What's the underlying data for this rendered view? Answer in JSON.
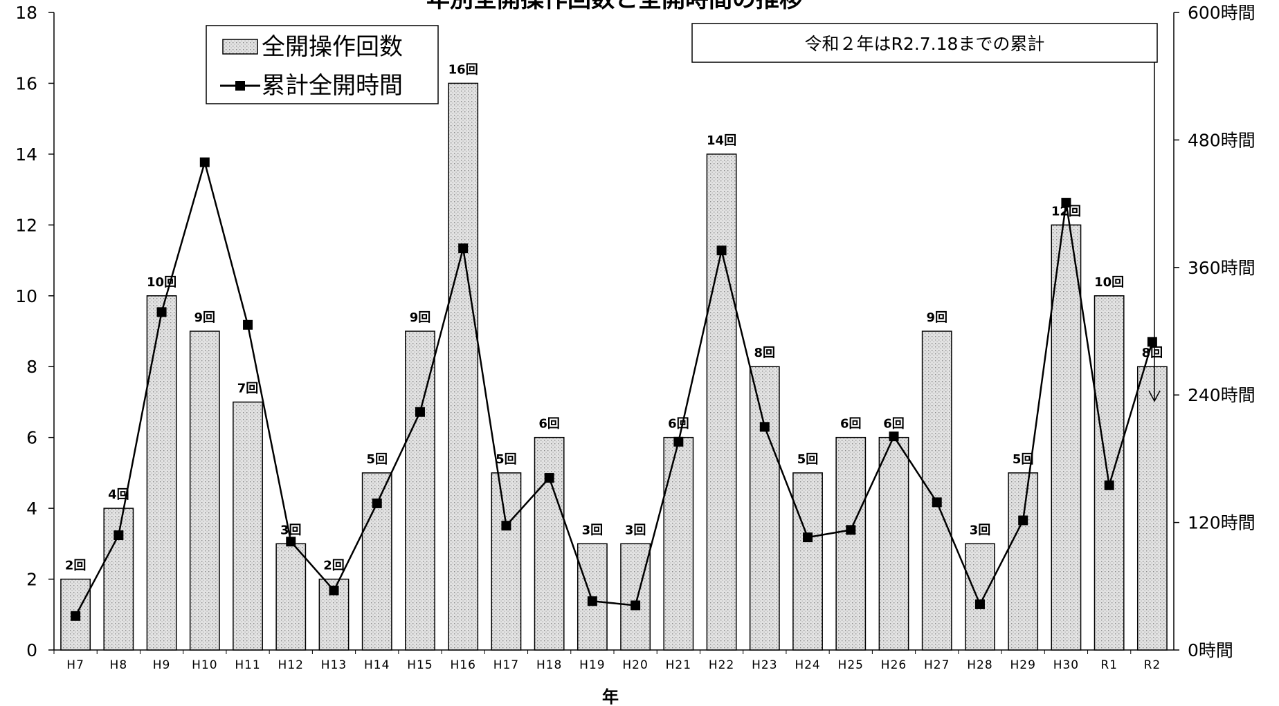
{
  "chart_data": {
    "type": "bar",
    "title": "年別全開操作回数と全開時間の推移",
    "xlabel": "年",
    "categories": [
      "H7",
      "H8",
      "H9",
      "H10",
      "H11",
      "H12",
      "H13",
      "H14",
      "H15",
      "H16",
      "H17",
      "H18",
      "H19",
      "H20",
      "H21",
      "H22",
      "H23",
      "H24",
      "H25",
      "H26",
      "H27",
      "H28",
      "H29",
      "H30",
      "R1",
      "R2"
    ],
    "series": [
      {
        "name": "全開操作回数",
        "type": "bar",
        "axis": "left",
        "values": [
          2,
          4,
          10,
          9,
          7,
          3,
          2,
          5,
          9,
          16,
          5,
          6,
          3,
          3,
          6,
          14,
          8,
          5,
          6,
          6,
          9,
          3,
          5,
          12,
          10,
          8
        ],
        "data_labels": [
          "2回",
          "4回",
          "10回",
          "9回",
          "7回",
          "3回",
          "2回",
          "5回",
          "9回",
          "16回",
          "5回",
          "6回",
          "3回",
          "3回",
          "6回",
          "14回",
          "8回",
          "5回",
          "6回",
          "6回",
          "9回",
          "3回",
          "5回",
          "12回",
          "10回",
          "8回"
        ]
      },
      {
        "name": "累計全開時間",
        "type": "line",
        "axis": "right",
        "values": [
          32,
          108,
          318,
          459,
          306,
          102,
          56,
          138,
          224,
          378,
          117,
          162,
          46,
          42,
          196,
          376,
          210,
          106,
          113,
          201,
          139,
          43,
          122,
          421,
          155,
          290
        ]
      }
    ],
    "ylim_left": [
      0,
      18
    ],
    "yticks_left": [
      "0",
      "2",
      "4",
      "6",
      "8",
      "10",
      "12",
      "14",
      "16",
      "18"
    ],
    "ylim_right": [
      0,
      600
    ],
    "yticks_right": [
      "0時間",
      "120時間",
      "240時間",
      "360時間",
      "480時間",
      "600時間"
    ],
    "yticks_right_values": [
      0,
      120,
      240,
      360,
      480,
      600
    ],
    "grid": false,
    "legend": "top-left",
    "annotation": "令和２年はR2.7.18までの累計",
    "colors": {
      "bar_fill": "#dcdcdc",
      "bar_dot": "#8a8a8a",
      "line": "#000000",
      "axis": "#000000"
    }
  }
}
